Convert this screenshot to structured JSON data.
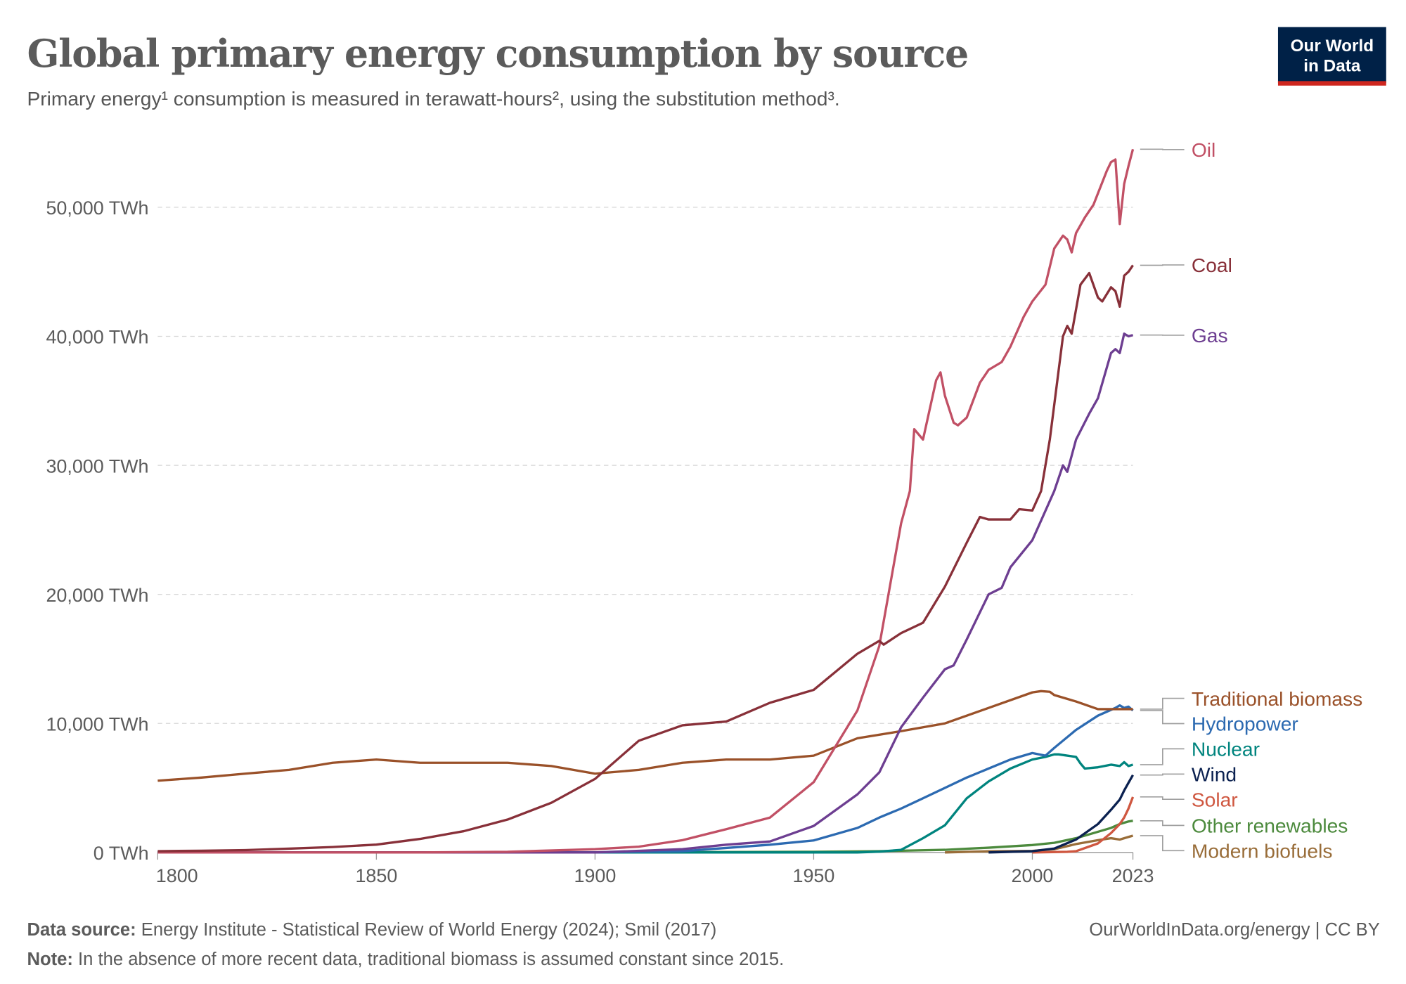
{
  "header": {
    "title": "Global primary energy consumption by source",
    "subtitle": "Primary energy¹ consumption is measured in terawatt-hours², using the substitution method³.",
    "logo_line1": "Our World",
    "logo_line2": "in Data",
    "logo_bg": "#002147",
    "logo_accent": "#ce261e"
  },
  "footer": {
    "source_label": "Data source:",
    "source_text": " Energy Institute - Statistical Review of World Energy (2024); Smil (2017)",
    "note_label": "Note:",
    "note_text": " In the absence of more recent data, traditional biomass is assumed constant since 2015.",
    "url": "OurWorldInData.org/energy | CC BY"
  },
  "chart_data": {
    "type": "line",
    "title": "Global primary energy consumption by source",
    "xlim": [
      1800,
      2023
    ],
    "ylim": [
      0,
      55000
    ],
    "x_ticks": [
      "1800",
      "1850",
      "1900",
      "1950",
      "2000",
      "2023"
    ],
    "x_tick_values": [
      1800,
      1850,
      1900,
      1950,
      2000,
      2023
    ],
    "y_ticks": [
      "0 TWh",
      "10,000 TWh",
      "20,000 TWh",
      "30,000 TWh",
      "40,000 TWh",
      "50,000 TWh"
    ],
    "y_tick_values": [
      0,
      10000,
      20000,
      30000,
      40000,
      50000
    ],
    "grid": "horizontal dashed",
    "legend": "right, end-of-line labels",
    "series": [
      {
        "name": "Oil",
        "color": "#c15065",
        "points": [
          [
            1800,
            0
          ],
          [
            1860,
            0
          ],
          [
            1880,
            50
          ],
          [
            1900,
            250
          ],
          [
            1910,
            450
          ],
          [
            1920,
            950
          ],
          [
            1930,
            1800
          ],
          [
            1940,
            2700
          ],
          [
            1950,
            5450
          ],
          [
            1960,
            11000
          ],
          [
            1965,
            16000
          ],
          [
            1970,
            25500
          ],
          [
            1972,
            28000
          ],
          [
            1973,
            32800
          ],
          [
            1975,
            32000
          ],
          [
            1978,
            36600
          ],
          [
            1979,
            37200
          ],
          [
            1980,
            35400
          ],
          [
            1982,
            33300
          ],
          [
            1983,
            33100
          ],
          [
            1985,
            33700
          ],
          [
            1988,
            36400
          ],
          [
            1990,
            37400
          ],
          [
            1993,
            38000
          ],
          [
            1995,
            39200
          ],
          [
            1998,
            41500
          ],
          [
            2000,
            42700
          ],
          [
            2003,
            44000
          ],
          [
            2005,
            46800
          ],
          [
            2007,
            47800
          ],
          [
            2008,
            47500
          ],
          [
            2009,
            46500
          ],
          [
            2010,
            48000
          ],
          [
            2012,
            49200
          ],
          [
            2014,
            50200
          ],
          [
            2017,
            52800
          ],
          [
            2018,
            53500
          ],
          [
            2019,
            53700
          ],
          [
            2020,
            48700
          ],
          [
            2021,
            51800
          ],
          [
            2022,
            53200
          ],
          [
            2023,
            54500
          ]
        ]
      },
      {
        "name": "Coal",
        "color": "#883039",
        "points": [
          [
            1800,
            100
          ],
          [
            1810,
            130
          ],
          [
            1820,
            180
          ],
          [
            1830,
            290
          ],
          [
            1840,
            420
          ],
          [
            1850,
            610
          ],
          [
            1860,
            1050
          ],
          [
            1870,
            1650
          ],
          [
            1880,
            2550
          ],
          [
            1890,
            3850
          ],
          [
            1900,
            5700
          ],
          [
            1910,
            8650
          ],
          [
            1920,
            9850
          ],
          [
            1930,
            10150
          ],
          [
            1940,
            11600
          ],
          [
            1950,
            12600
          ],
          [
            1960,
            15400
          ],
          [
            1965,
            16400
          ],
          [
            1966,
            16100
          ],
          [
            1970,
            17000
          ],
          [
            1975,
            17800
          ],
          [
            1980,
            20600
          ],
          [
            1985,
            24000
          ],
          [
            1988,
            26000
          ],
          [
            1990,
            25800
          ],
          [
            1995,
            25800
          ],
          [
            1997,
            26600
          ],
          [
            2000,
            26500
          ],
          [
            2002,
            28000
          ],
          [
            2004,
            32000
          ],
          [
            2007,
            40000
          ],
          [
            2008,
            40800
          ],
          [
            2009,
            40200
          ],
          [
            2011,
            44000
          ],
          [
            2013,
            44900
          ],
          [
            2015,
            43000
          ],
          [
            2016,
            42700
          ],
          [
            2018,
            43800
          ],
          [
            2019,
            43500
          ],
          [
            2020,
            42300
          ],
          [
            2021,
            44700
          ],
          [
            2022,
            45000
          ],
          [
            2023,
            45500
          ]
        ]
      },
      {
        "name": "Gas",
        "color": "#6d3e91",
        "points": [
          [
            1800,
            0
          ],
          [
            1900,
            0
          ],
          [
            1920,
            250
          ],
          [
            1930,
            600
          ],
          [
            1940,
            850
          ],
          [
            1950,
            2050
          ],
          [
            1960,
            4500
          ],
          [
            1965,
            6200
          ],
          [
            1970,
            9700
          ],
          [
            1975,
            12000
          ],
          [
            1980,
            14200
          ],
          [
            1982,
            14500
          ],
          [
            1985,
            16500
          ],
          [
            1990,
            20000
          ],
          [
            1993,
            20500
          ],
          [
            1995,
            22100
          ],
          [
            2000,
            24200
          ],
          [
            2005,
            28000
          ],
          [
            2007,
            30000
          ],
          [
            2008,
            29500
          ],
          [
            2010,
            32000
          ],
          [
            2013,
            34000
          ],
          [
            2015,
            35200
          ],
          [
            2018,
            38700
          ],
          [
            2019,
            39000
          ],
          [
            2020,
            38700
          ],
          [
            2021,
            40200
          ],
          [
            2022,
            40000
          ],
          [
            2023,
            40100
          ]
        ]
      },
      {
        "name": "Traditional biomass",
        "color": "#9a5129",
        "points": [
          [
            1800,
            5560
          ],
          [
            1810,
            5800
          ],
          [
            1820,
            6100
          ],
          [
            1830,
            6400
          ],
          [
            1840,
            6950
          ],
          [
            1850,
            7200
          ],
          [
            1860,
            6950
          ],
          [
            1870,
            6950
          ],
          [
            1880,
            6950
          ],
          [
            1890,
            6700
          ],
          [
            1900,
            6100
          ],
          [
            1910,
            6400
          ],
          [
            1920,
            6950
          ],
          [
            1930,
            7200
          ],
          [
            1940,
            7200
          ],
          [
            1950,
            7500
          ],
          [
            1960,
            8850
          ],
          [
            1970,
            9400
          ],
          [
            1980,
            10000
          ],
          [
            1990,
            11200
          ],
          [
            2000,
            12400
          ],
          [
            2002,
            12500
          ],
          [
            2004,
            12450
          ],
          [
            2005,
            12200
          ],
          [
            2010,
            11700
          ],
          [
            2015,
            11100
          ],
          [
            2023,
            11100
          ]
        ]
      },
      {
        "name": "Hydropower",
        "color": "#2c6ab1",
        "points": [
          [
            1800,
            0
          ],
          [
            1900,
            0
          ],
          [
            1920,
            100
          ],
          [
            1930,
            350
          ],
          [
            1940,
            600
          ],
          [
            1950,
            930
          ],
          [
            1960,
            1900
          ],
          [
            1965,
            2700
          ],
          [
            1970,
            3400
          ],
          [
            1975,
            4200
          ],
          [
            1980,
            5000
          ],
          [
            1985,
            5800
          ],
          [
            1990,
            6500
          ],
          [
            1995,
            7200
          ],
          [
            2000,
            7700
          ],
          [
            2003,
            7500
          ],
          [
            2005,
            8100
          ],
          [
            2010,
            9500
          ],
          [
            2015,
            10600
          ],
          [
            2019,
            11200
          ],
          [
            2020,
            11400
          ],
          [
            2021,
            11200
          ],
          [
            2022,
            11300
          ],
          [
            2023,
            11000
          ]
        ]
      },
      {
        "name": "Nuclear",
        "color": "#00847e",
        "points": [
          [
            1800,
            0
          ],
          [
            1960,
            0
          ],
          [
            1965,
            60
          ],
          [
            1970,
            200
          ],
          [
            1975,
            1100
          ],
          [
            1980,
            2100
          ],
          [
            1985,
            4200
          ],
          [
            1990,
            5500
          ],
          [
            1995,
            6500
          ],
          [
            2000,
            7200
          ],
          [
            2003,
            7400
          ],
          [
            2005,
            7600
          ],
          [
            2006,
            7600
          ],
          [
            2010,
            7400
          ],
          [
            2011,
            6900
          ],
          [
            2012,
            6500
          ],
          [
            2015,
            6600
          ],
          [
            2018,
            6800
          ],
          [
            2020,
            6700
          ],
          [
            2021,
            7000
          ],
          [
            2022,
            6700
          ],
          [
            2023,
            6800
          ]
        ]
      },
      {
        "name": "Wind",
        "color": "#0b2150",
        "points": [
          [
            1990,
            0
          ],
          [
            2000,
            100
          ],
          [
            2005,
            300
          ],
          [
            2010,
            1000
          ],
          [
            2015,
            2200
          ],
          [
            2018,
            3300
          ],
          [
            2020,
            4100
          ],
          [
            2021,
            4800
          ],
          [
            2022,
            5400
          ],
          [
            2023,
            6000
          ]
        ]
      },
      {
        "name": "Solar",
        "color": "#cf5740",
        "points": [
          [
            2000,
            0
          ],
          [
            2008,
            50
          ],
          [
            2010,
            100
          ],
          [
            2015,
            700
          ],
          [
            2018,
            1500
          ],
          [
            2020,
            2200
          ],
          [
            2021,
            2700
          ],
          [
            2022,
            3400
          ],
          [
            2023,
            4300
          ]
        ]
      },
      {
        "name": "Other renewables",
        "color": "#4c8a3d",
        "points": [
          [
            1800,
            0
          ],
          [
            1900,
            0
          ],
          [
            1950,
            50
          ],
          [
            1965,
            100
          ],
          [
            1980,
            200
          ],
          [
            1990,
            370
          ],
          [
            2000,
            570
          ],
          [
            2005,
            750
          ],
          [
            2010,
            1100
          ],
          [
            2015,
            1600
          ],
          [
            2018,
            1900
          ],
          [
            2020,
            2200
          ],
          [
            2022,
            2400
          ],
          [
            2023,
            2450
          ]
        ]
      },
      {
        "name": "Modern biofuels",
        "color": "#996d39",
        "points": [
          [
            1980,
            0
          ],
          [
            1990,
            90
          ],
          [
            2000,
            120
          ],
          [
            2005,
            250
          ],
          [
            2010,
            650
          ],
          [
            2015,
            950
          ],
          [
            2018,
            1100
          ],
          [
            2020,
            1000
          ],
          [
            2022,
            1200
          ],
          [
            2023,
            1300
          ]
        ]
      }
    ]
  }
}
